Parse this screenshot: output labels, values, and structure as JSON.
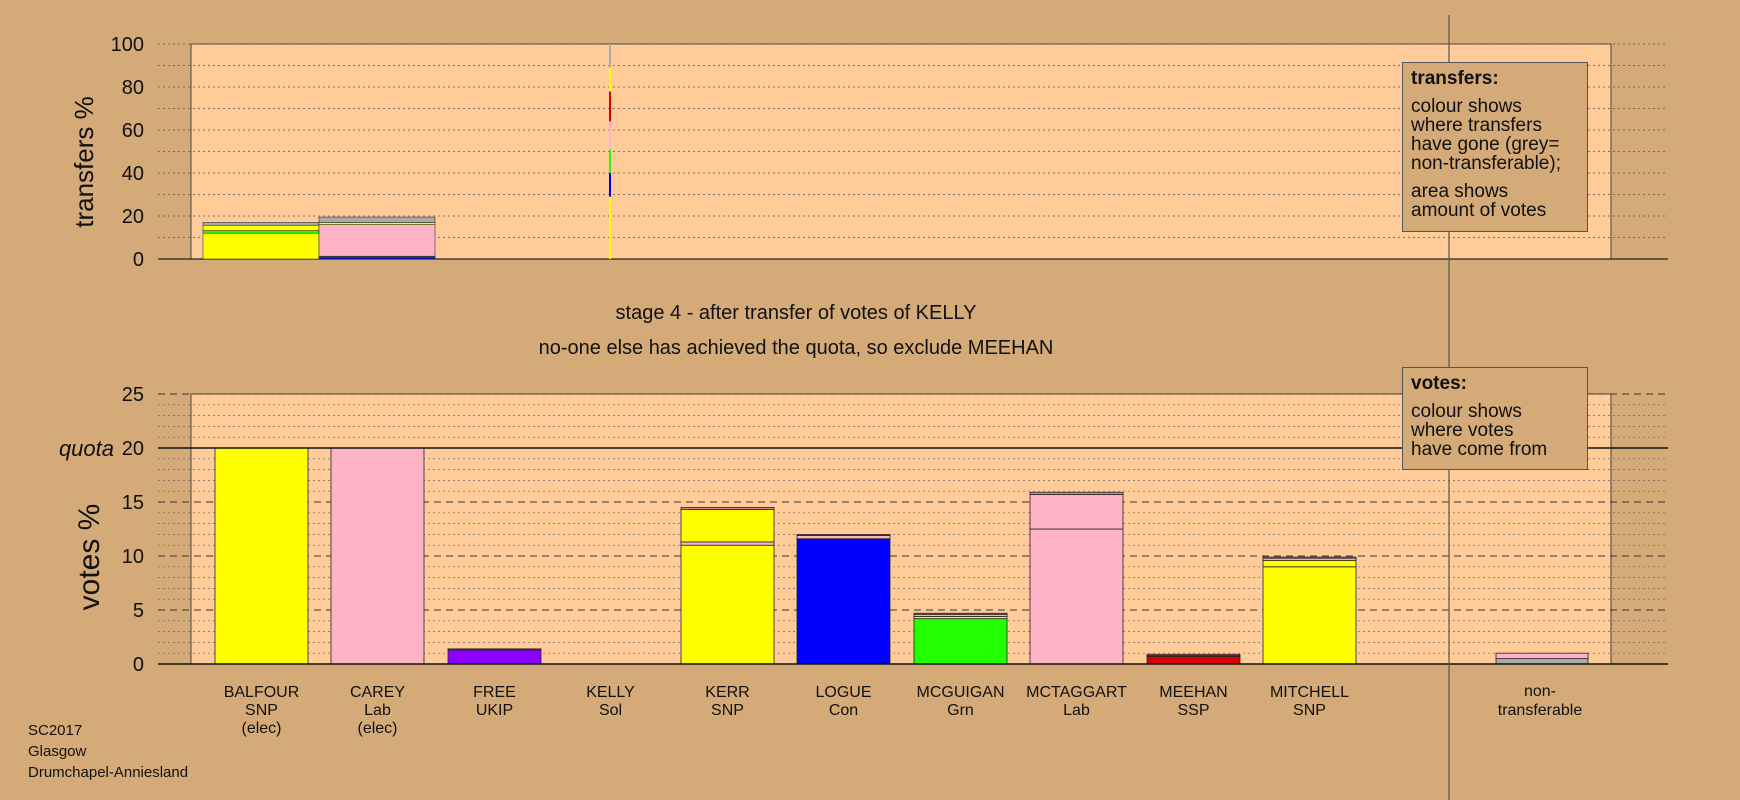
{
  "stage_line": "stage 4 - after transfer of votes of KELLY",
  "action_line": "no-one else has achieved the quota, so exclude MEEHAN",
  "legend_transfers": {
    "title": "transfers:",
    "line1": "colour shows",
    "line2": "where transfers",
    "line3": "have gone (grey=",
    "line4": "non-transferable);",
    "line5": "area shows",
    "line6": "amount of votes"
  },
  "legend_votes": {
    "title": "votes:",
    "line1": "colour shows",
    "line2": "where votes",
    "line3": "have come from"
  },
  "footer": {
    "election": "SC2017",
    "council": "Glasgow",
    "ward": "Drumchapel-Anniesland"
  },
  "colors": {
    "background": "#d4aa78",
    "plot_area": "#ffcc99",
    "SNP": "#ffff00",
    "Lab": "#ffb3c6",
    "UKIP": "#8b00ff",
    "Sol": "#ff7f7f",
    "Con": "#0000ff",
    "Grn": "#22ff00",
    "SSP": "#dd0000",
    "nontransferable": "#aaaaaa"
  },
  "chart_data": [
    {
      "type": "bar",
      "name": "transfers",
      "ylabel": "transfers %",
      "ylim": [
        0,
        100
      ],
      "yticks": [
        0,
        20,
        40,
        60,
        80,
        100
      ],
      "grid": true,
      "columns": [
        {
          "from": "BALFOUR",
          "width_share": 1.0,
          "segments": [
            {
              "to": "KERR",
              "party": "SNP",
              "value": 12.0
            },
            {
              "to": "MCGUIGAN",
              "party": "Grn",
              "value": 1.2
            },
            {
              "to": "MITCHELL",
              "party": "SNP",
              "value": 2.5
            },
            {
              "to": "non-transferable",
              "party": "nontransferable",
              "value": 1.3
            }
          ]
        },
        {
          "from": "CAREY",
          "width_share": 1.0,
          "segments": [
            {
              "to": "LOGUE",
              "party": "Con",
              "value": 0.6
            },
            {
              "to": "MEEHAN",
              "party": "SSP",
              "value": 0.4
            },
            {
              "to": "MCGUIGAN",
              "party": "Grn",
              "value": 0.3
            },
            {
              "to": "MCTAGGART",
              "party": "Lab",
              "value": 14.7
            },
            {
              "to": "MITCHELL",
              "party": "SNP",
              "value": 1.0
            },
            {
              "to": "non-transferable",
              "party": "nontransferable",
              "value": 2.5
            }
          ]
        },
        {
          "from": "KELLY",
          "width_share": 0.02,
          "segments": [
            {
              "to": "KERR",
              "party": "SNP",
              "value": 29
            },
            {
              "to": "LOGUE",
              "party": "Con",
              "value": 11
            },
            {
              "to": "MCGUIGAN",
              "party": "Grn",
              "value": 11
            },
            {
              "to": "MCTAGGART",
              "party": "Lab",
              "value": 13
            },
            {
              "to": "MEEHAN",
              "party": "SSP",
              "value": 14
            },
            {
              "to": "MITCHELL",
              "party": "SNP",
              "value": 11
            },
            {
              "to": "non-transferable",
              "party": "nontransferable",
              "value": 11
            }
          ]
        }
      ]
    },
    {
      "type": "bar",
      "name": "votes",
      "ylabel": "votes %",
      "ylim": [
        0,
        25
      ],
      "yticks": [
        0,
        5,
        10,
        15,
        20,
        25
      ],
      "quota": 20,
      "quota_label": "quota",
      "grid": true,
      "categories": [
        {
          "name": "BALFOUR",
          "party": "SNP",
          "note": "(elec)"
        },
        {
          "name": "CAREY",
          "party": "Lab",
          "note": "(elec)"
        },
        {
          "name": "FREE",
          "party": "UKIP",
          "note": ""
        },
        {
          "name": "KELLY",
          "party": "Sol",
          "note": ""
        },
        {
          "name": "KERR",
          "party": "SNP",
          "note": ""
        },
        {
          "name": "LOGUE",
          "party": "Con",
          "note": ""
        },
        {
          "name": "MCGUIGAN",
          "party": "Grn",
          "note": ""
        },
        {
          "name": "MCTAGGART",
          "party": "Lab",
          "note": ""
        },
        {
          "name": "MEEHAN",
          "party": "SSP",
          "note": ""
        },
        {
          "name": "MITCHELL",
          "party": "SNP",
          "note": ""
        }
      ],
      "nontransferable_label_1": "non-",
      "nontransferable_label_2": "transferable",
      "bars": [
        {
          "segments": [
            {
              "party": "SNP",
              "value": 20.0
            }
          ]
        },
        {
          "segments": [
            {
              "party": "Lab",
              "value": 20.0
            }
          ]
        },
        {
          "segments": [
            {
              "party": "UKIP",
              "value": 1.3
            },
            {
              "party": "SSP",
              "value": 0.1
            }
          ]
        },
        {
          "segments": []
        },
        {
          "segments": [
            {
              "party": "SNP",
              "value": 11.0
            },
            {
              "party": "Lab",
              "value": 0.3
            },
            {
              "party": "SNP",
              "value": 3.0
            },
            {
              "party": "Sol",
              "value": 0.2
            }
          ]
        },
        {
          "segments": [
            {
              "party": "Con",
              "value": 11.6
            },
            {
              "party": "Lab",
              "value": 0.3
            },
            {
              "party": "Sol",
              "value": 0.1
            }
          ]
        },
        {
          "segments": [
            {
              "party": "Grn",
              "value": 4.2
            },
            {
              "party": "SNP",
              "value": 0.2
            },
            {
              "party": "Lab",
              "value": 0.2
            },
            {
              "party": "Sol",
              "value": 0.1
            }
          ]
        },
        {
          "segments": [
            {
              "party": "Lab",
              "value": 12.5
            },
            {
              "party": "Lab",
              "value": 3.2
            },
            {
              "party": "Sol",
              "value": 0.2
            }
          ]
        },
        {
          "segments": [
            {
              "party": "SSP",
              "value": 0.7
            },
            {
              "party": "Lab",
              "value": 0.1
            },
            {
              "party": "Sol",
              "value": 0.1
            }
          ]
        },
        {
          "segments": [
            {
              "party": "SNP",
              "value": 9.0
            },
            {
              "party": "SNP",
              "value": 0.6
            },
            {
              "party": "Lab",
              "value": 0.2
            },
            {
              "party": "Sol",
              "value": 0.1
            }
          ]
        }
      ],
      "nontransferable": {
        "segments": [
          {
            "party": "nontransferable",
            "value": 0.5
          },
          {
            "party": "Lab",
            "value": 0.5
          }
        ]
      }
    }
  ]
}
